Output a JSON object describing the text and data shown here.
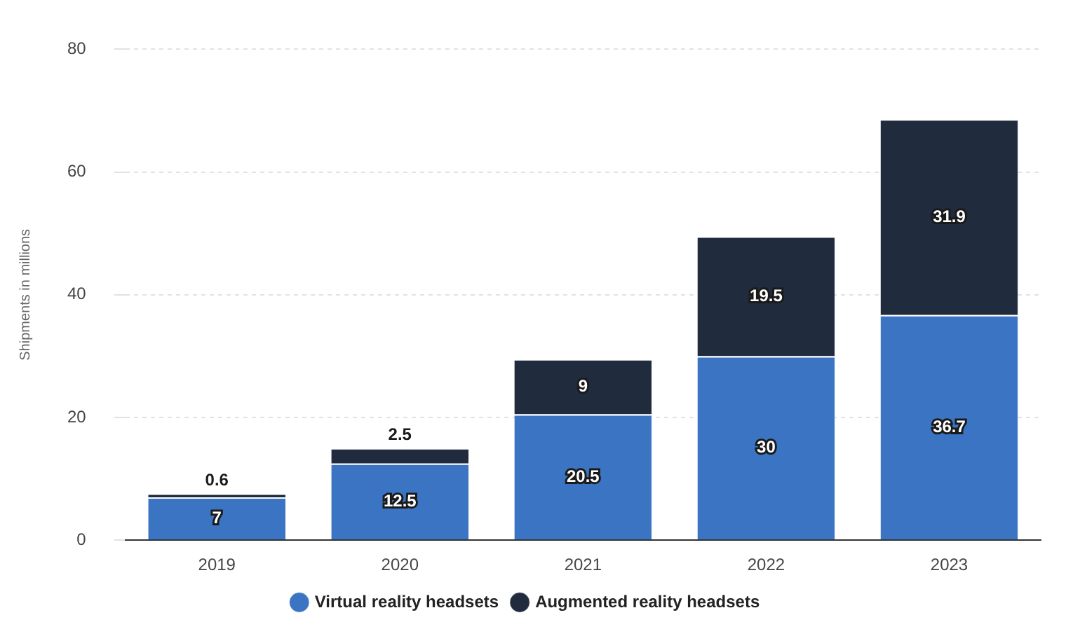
{
  "chart_data": {
    "type": "bar",
    "stacked": true,
    "ylabel": "Shipments in millions",
    "categories": [
      "2019",
      "2020",
      "2021",
      "2022",
      "2023"
    ],
    "series": [
      {
        "name": "Virtual reality headsets",
        "color": "#3b74c2",
        "values": [
          7,
          12.5,
          20.5,
          30,
          36.7
        ]
      },
      {
        "name": "Augmented reality headsets",
        "color": "#202b3d",
        "values": [
          0.6,
          2.5,
          9,
          19.5,
          31.9
        ]
      }
    ],
    "ylim": [
      0,
      80
    ],
    "yticks": [
      0,
      20,
      40,
      60,
      80
    ],
    "grid": "y",
    "legend": "bottom",
    "data_labels": true
  }
}
